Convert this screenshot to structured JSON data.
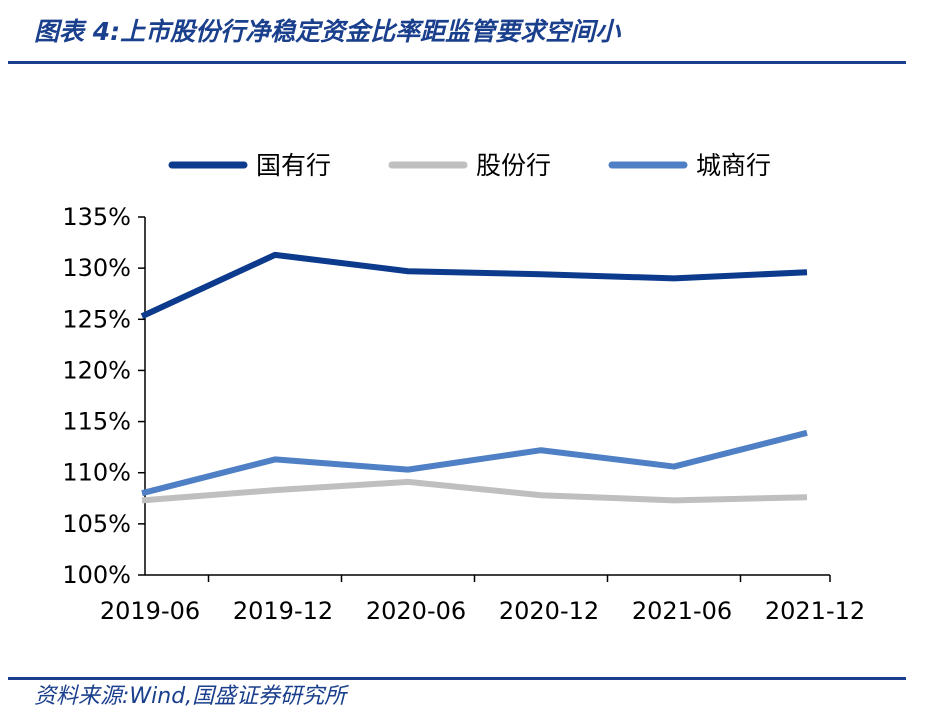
{
  "header": {
    "title": "图表 4:上市股份行净稳定资金比率距监管要求空间小"
  },
  "footer": {
    "source": "资料来源:Wind,国盛证券研究所"
  },
  "chart_data": {
    "type": "line",
    "categories": [
      "2019-06",
      "2019-12",
      "2020-06",
      "2020-12",
      "2021-06",
      "2021-12"
    ],
    "ylim": [
      100,
      135
    ],
    "yticks": [
      100,
      105,
      110,
      115,
      120,
      125,
      130,
      135
    ],
    "ytick_labels": [
      "100%",
      "105%",
      "110%",
      "115%",
      "120%",
      "125%",
      "130%",
      "135%"
    ],
    "grid": false,
    "legend_position": "top",
    "series": [
      {
        "name": "国有行",
        "color": "#0c3a8c",
        "values": [
          125.3,
          131.3,
          129.7,
          129.4,
          129.0,
          129.6
        ]
      },
      {
        "name": "股份行",
        "color": "#bfbfbf",
        "values": [
          107.3,
          108.3,
          109.1,
          107.8,
          107.3,
          107.6
        ]
      },
      {
        "name": "城商行",
        "color": "#4f7fc4",
        "values": [
          108.0,
          111.3,
          110.3,
          112.2,
          110.6,
          113.9
        ]
      }
    ]
  }
}
